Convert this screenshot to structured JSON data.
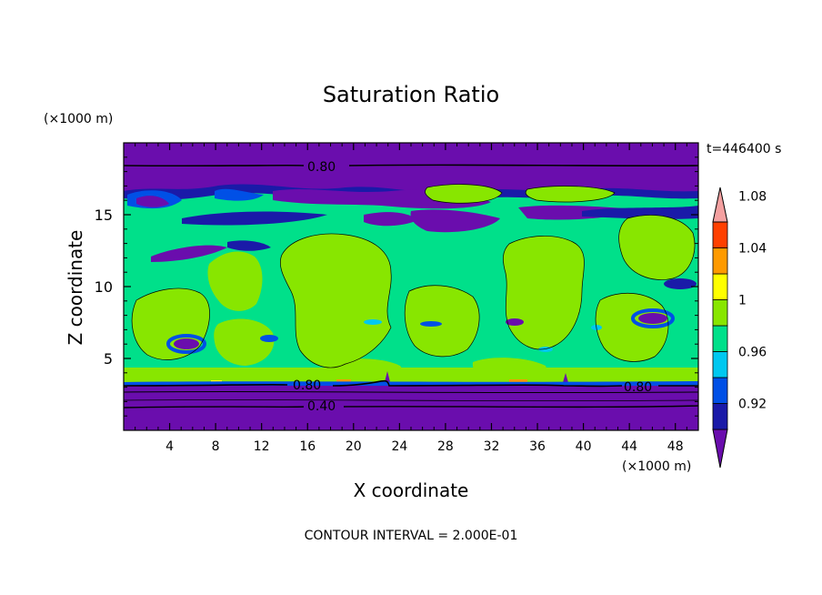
{
  "chart_data": {
    "type": "heatmap",
    "title": "Saturation Ratio",
    "xlabel": "X coordinate",
    "ylabel": "Z coordinate",
    "x_unit": "(×1000 m)",
    "y_unit": "(×1000 m)",
    "time_label": "t=446400 s",
    "footer": "CONTOUR INTERVAL = 2.000E-01",
    "xlim": [
      0,
      50
    ],
    "ylim": [
      0,
      20
    ],
    "x_ticks": [
      4,
      8,
      12,
      16,
      20,
      24,
      28,
      32,
      36,
      40,
      44,
      48
    ],
    "y_ticks": [
      5,
      10,
      15
    ],
    "contour_labels": [
      {
        "text": "0.80",
        "x": 17,
        "z": 18.2
      },
      {
        "text": "0.80",
        "x": 16.5,
        "z": 3.0
      },
      {
        "text": "0.80",
        "x": 44.5,
        "z": 2.9
      },
      {
        "text": "0.40",
        "x": 17,
        "z": 1.7
      }
    ],
    "colorbar": {
      "tick_labels": [
        "0.92",
        "0.96",
        "1",
        "1.04",
        "1.08"
      ],
      "levels": [
        0.92,
        0.94,
        0.96,
        0.98,
        1.0,
        1.02,
        1.04,
        1.06,
        1.08,
        1.1
      ],
      "colors": [
        "#6a0dad",
        "#1a1aa8",
        "#0050e6",
        "#00c8f0",
        "#00e08a",
        "#88e600",
        "#ffff00",
        "#ff9a00",
        "#ff4000",
        "#f4a0a0"
      ]
    }
  }
}
